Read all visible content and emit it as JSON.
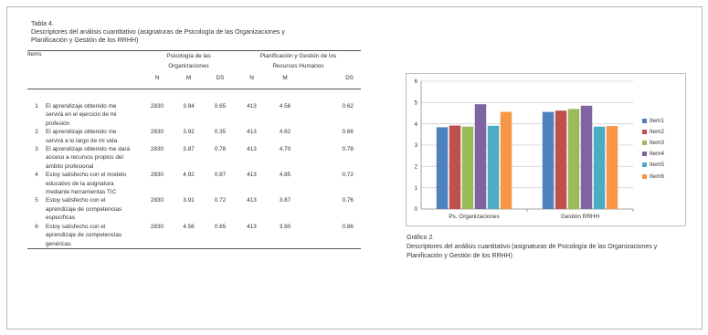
{
  "table": {
    "caption_line1": "Tabla 4.",
    "caption_line2": "Descriptores del análisis cuantitativo (asignaturas de Psicología de las Organizaciones y",
    "caption_line3": "Planificación y Gestión de los RRHH)",
    "col_items": "Items",
    "group1_line1": "Psicología de las",
    "group1_line2": "Organizaciones",
    "group2_line1": "Planificación y Gestión de los",
    "group2_line2": "Recursos Humanos",
    "stat_n": "N",
    "stat_m": "M",
    "stat_ds": "DS",
    "rows": [
      {
        "idx": "1",
        "text": "El aprendizaje obtenido me servirá en el ejercicio de mi profesión",
        "n1": "2830",
        "m1": "3.84",
        "ds1": "0.65",
        "n2": "413",
        "m2": "4.56",
        "ds2": "0.62"
      },
      {
        "idx": "2",
        "text": "El aprendizaje obtenido me servirá a lo largo de mi vida",
        "n1": "2830",
        "m1": "3.92",
        "ds1": "0.35",
        "n2": "413",
        "m2": "4.62",
        "ds2": "0.66"
      },
      {
        "idx": "3",
        "text": "El aprendizaje obtenido me dará acceso a recursos propios del ámbito profesional",
        "n1": "2830",
        "m1": "3.87",
        "ds1": "0.78",
        "n2": "413",
        "m2": "4.70",
        "ds2": "0.78"
      },
      {
        "idx": "4",
        "text": "Estoy satisfecho con el modelo educativo de la asignatura mediante herramientas TIC",
        "n1": "2830",
        "m1": "4.92",
        "ds1": "0.87",
        "n2": "413",
        "m2": "4.85",
        "ds2": "0.72"
      },
      {
        "idx": "5",
        "text": "Estoy satisfecho con el aprendizaje de competencias específicas",
        "n1": "2830",
        "m1": "3.91",
        "ds1": "0.72",
        "n2": "413",
        "m2": "3.87",
        "ds2": "0.76"
      },
      {
        "idx": "6",
        "text": "Estoy satisfecho con el aprendizaje de competencias genéricas",
        "n1": "2830",
        "m1": "4.56",
        "ds1": "0.65",
        "n2": "413",
        "m2": "3.90",
        "ds2": "0.86"
      }
    ]
  },
  "figure": {
    "caption_line1": "Gráfico 2.",
    "caption_line2": "Descriptores del análisis cuantitativo (asignaturas de Psicología de las Organizaciones y",
    "caption_line3": "Planificación y Gestión de los RRHH)"
  },
  "chart_data": {
    "type": "bar",
    "categories": [
      "Ps. Organizaciones",
      "Gestión RRHH"
    ],
    "series": [
      {
        "name": "Item1",
        "color": "#4f81bd",
        "values": [
          3.84,
          4.56
        ]
      },
      {
        "name": "Item2",
        "color": "#c0504d",
        "values": [
          3.92,
          4.62
        ]
      },
      {
        "name": "Item3",
        "color": "#9bbb59",
        "values": [
          3.87,
          4.7
        ]
      },
      {
        "name": "Item4",
        "color": "#8064a2",
        "values": [
          4.92,
          4.85
        ]
      },
      {
        "name": "Item5",
        "color": "#4bacc6",
        "values": [
          3.91,
          3.87
        ]
      },
      {
        "name": "Item6",
        "color": "#f79646",
        "values": [
          4.56,
          3.9
        ]
      }
    ],
    "ylim": [
      0,
      6
    ],
    "yticks": [
      "0",
      "1",
      "2",
      "3",
      "4",
      "5",
      "6"
    ],
    "grid": true,
    "legend": "right"
  }
}
